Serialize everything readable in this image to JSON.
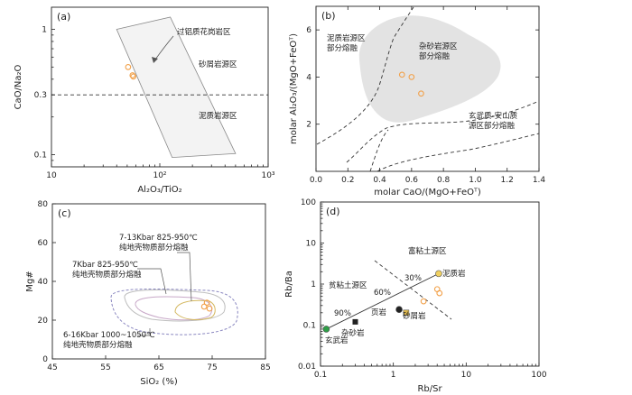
{
  "chart_data": [
    {
      "panel": "a",
      "type": "scatter",
      "xscale": "log",
      "yscale": "log",
      "xlim": [
        10,
        1000
      ],
      "ylim": [
        0.08,
        1.5
      ],
      "xticks": [
        10,
        100,
        1000
      ],
      "xtick_labels": [
        "10",
        "10²",
        "10³"
      ],
      "yticks": [
        0.1,
        0.3,
        1
      ],
      "ytick_labels": [
        "0.1",
        "0.3",
        "1"
      ],
      "xlabel": "Al₂O₃/TiO₂",
      "ylabel": "CaO/Na₂O",
      "field": [
        [
          40,
          1.0
        ],
        [
          125,
          1.25
        ],
        [
          500,
          0.102
        ],
        [
          130,
          0.095
        ]
      ],
      "threshold_y": 0.3,
      "labels": {
        "field": "过铝质花岗岩区",
        "upper": "砂屑岩源区",
        "lower": "泥质岩源区"
      },
      "points": [
        [
          51,
          0.5
        ],
        [
          56,
          0.43
        ],
        [
          57,
          0.42
        ]
      ]
    },
    {
      "panel": "b",
      "type": "scatter",
      "xlim": [
        0,
        1.4
      ],
      "ylim": [
        0,
        7
      ],
      "xticks": [
        0,
        0.2,
        0.4,
        0.6,
        0.8,
        1.0,
        1.2,
        1.4
      ],
      "xtick_labels": [
        "0.0",
        "0.2",
        "0.4",
        "0.6",
        "0.8",
        "1.0",
        "1.2",
        "1.4"
      ],
      "yticks": [
        2,
        4,
        6
      ],
      "ytick_labels": [
        "2",
        "4",
        "6"
      ],
      "xlabel": "molar CaO/(MgO+FeOᵀ)",
      "ylabel": "molar Al₂O₃/(MgO+FeOᵀ)",
      "labels": {
        "pelite": [
          "泥质岩源区",
          "部分熔融"
        ],
        "greywacke": [
          "杂砂岩源区",
          "部分熔融"
        ],
        "basalt": [
          "玄武质-安山质",
          "源区部分熔融"
        ]
      },
      "points": [
        [
          0.54,
          4.1
        ],
        [
          0.6,
          4.0
        ],
        [
          0.66,
          3.3
        ]
      ]
    },
    {
      "panel": "c",
      "type": "scatter",
      "xlim": [
        45,
        85
      ],
      "ylim": [
        0,
        80
      ],
      "xticks": [
        45,
        55,
        65,
        75,
        85
      ],
      "xtick_labels": [
        "45",
        "55",
        "65",
        "75",
        "85"
      ],
      "yticks": [
        0,
        20,
        40,
        60,
        80
      ],
      "ytick_labels": [
        "0",
        "20",
        "40",
        "60",
        "80"
      ],
      "xlabel": "SiO₂ (%)",
      "ylabel": "Mg#",
      "labels": {
        "exp1": [
          "7-13Kbar 825-950℃",
          "纯地壳物质部分熔融"
        ],
        "exp2": [
          "7Kbar 825-950℃",
          "纯地壳物质部分熔融"
        ],
        "exp3": [
          "6-16Kbar 1000~1050℃",
          "纯地壳物质部分熔融"
        ]
      },
      "points": [
        [
          73.5,
          27
        ],
        [
          74,
          29
        ],
        [
          74.5,
          26
        ]
      ]
    },
    {
      "panel": "d",
      "type": "scatter",
      "xscale": "log",
      "yscale": "log",
      "xlim": [
        0.1,
        100
      ],
      "ylim": [
        0.01,
        100
      ],
      "xticks": [
        0.1,
        1,
        10,
        100
      ],
      "xtick_labels": [
        "0.1",
        "1",
        "10",
        "100"
      ],
      "yticks": [
        0.01,
        0.1,
        1,
        10,
        100
      ],
      "ytick_labels": [
        "0.01",
        "0.1",
        "1",
        "10",
        "100"
      ],
      "xlabel": "Rb/Sr",
      "ylabel": "Rb/Ba",
      "labels": {
        "clay_rich": "富粘土源区",
        "clay_poor": "贫粘土源区"
      },
      "mixing_labels": [
        "90%",
        "60%",
        "30%"
      ],
      "end_members": [
        {
          "name": "玄武岩",
          "x": 0.12,
          "y": 0.08,
          "color": "#2e9e47"
        },
        {
          "name": "杂砂岩",
          "x": 0.3,
          "y": 0.12,
          "color": "#222222"
        },
        {
          "name": "页岩",
          "x": 1.2,
          "y": 0.24,
          "color": "#222222"
        },
        {
          "name": "砂屑岩",
          "x": 1.5,
          "y": 0.2,
          "color": "#e0b84a"
        },
        {
          "name": "泥质岩",
          "x": 4.2,
          "y": 1.8,
          "color": "#f0d060"
        }
      ],
      "points": [
        [
          4.0,
          0.75
        ],
        [
          4.3,
          0.6
        ],
        [
          2.6,
          0.38
        ]
      ]
    }
  ],
  "colors": {
    "sample": "#f2a14a",
    "field": "#e3e3e3",
    "dash": "#333333"
  }
}
